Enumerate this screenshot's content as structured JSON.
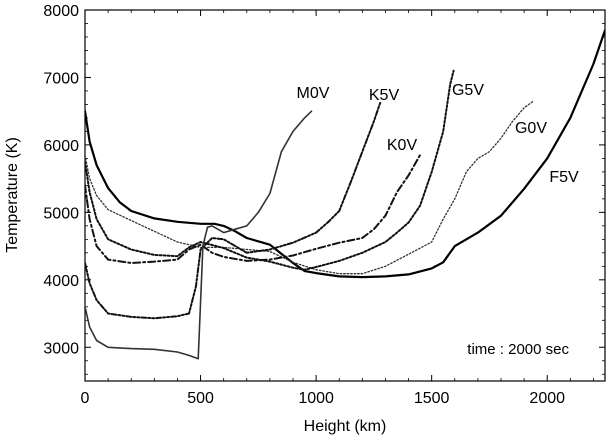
{
  "chart_data": {
    "type": "line",
    "xlabel": "Height (km)",
    "ylabel": "Temperature (K)",
    "xlim": [
      0,
      2250
    ],
    "ylim": [
      2500,
      8000
    ],
    "xticks": [
      0,
      500,
      1000,
      1500,
      2000
    ],
    "yticks": [
      3000,
      4000,
      5000,
      6000,
      7000,
      8000
    ],
    "grid": false,
    "annotation": "time : 2000 sec",
    "series": [
      {
        "name": "F5V",
        "style": "solid-thick",
        "points": [
          [
            0,
            6500
          ],
          [
            20,
            6050
          ],
          [
            50,
            5700
          ],
          [
            100,
            5360
          ],
          [
            150,
            5150
          ],
          [
            200,
            5020
          ],
          [
            300,
            4910
          ],
          [
            400,
            4860
          ],
          [
            500,
            4830
          ],
          [
            560,
            4830
          ],
          [
            600,
            4800
          ],
          [
            650,
            4720
          ],
          [
            700,
            4620
          ],
          [
            800,
            4520
          ],
          [
            900,
            4250
          ],
          [
            950,
            4130
          ],
          [
            1000,
            4100
          ],
          [
            1100,
            4050
          ],
          [
            1200,
            4040
          ],
          [
            1300,
            4050
          ],
          [
            1400,
            4080
          ],
          [
            1500,
            4170
          ],
          [
            1550,
            4260
          ],
          [
            1600,
            4500
          ],
          [
            1700,
            4700
          ],
          [
            1800,
            4950
          ],
          [
            1900,
            5350
          ],
          [
            2000,
            5800
          ],
          [
            2100,
            6400
          ],
          [
            2200,
            7200
          ],
          [
            2250,
            7700
          ]
        ]
      },
      {
        "name": "G0V",
        "style": "dotted",
        "points": [
          [
            0,
            5850
          ],
          [
            20,
            5500
          ],
          [
            50,
            5250
          ],
          [
            100,
            5040
          ],
          [
            200,
            4880
          ],
          [
            300,
            4720
          ],
          [
            400,
            4560
          ],
          [
            500,
            4480
          ],
          [
            600,
            4480
          ],
          [
            700,
            4450
          ],
          [
            800,
            4420
          ],
          [
            900,
            4260
          ],
          [
            1000,
            4150
          ],
          [
            1100,
            4090
          ],
          [
            1200,
            4090
          ],
          [
            1300,
            4200
          ],
          [
            1400,
            4380
          ],
          [
            1500,
            4560
          ],
          [
            1550,
            4900
          ],
          [
            1600,
            5200
          ],
          [
            1650,
            5600
          ],
          [
            1700,
            5800
          ],
          [
            1750,
            5900
          ],
          [
            1800,
            6100
          ],
          [
            1850,
            6350
          ],
          [
            1900,
            6550
          ],
          [
            1940,
            6650
          ]
        ]
      },
      {
        "name": "G5V",
        "style": "dotted-dense",
        "points": [
          [
            0,
            5750
          ],
          [
            20,
            5300
          ],
          [
            50,
            4900
          ],
          [
            100,
            4600
          ],
          [
            200,
            4450
          ],
          [
            300,
            4370
          ],
          [
            400,
            4350
          ],
          [
            450,
            4480
          ],
          [
            500,
            4560
          ],
          [
            600,
            4470
          ],
          [
            700,
            4330
          ],
          [
            800,
            4270
          ],
          [
            900,
            4180
          ],
          [
            950,
            4150
          ],
          [
            1000,
            4190
          ],
          [
            1100,
            4280
          ],
          [
            1200,
            4400
          ],
          [
            1300,
            4560
          ],
          [
            1350,
            4700
          ],
          [
            1400,
            4850
          ],
          [
            1450,
            5100
          ],
          [
            1500,
            5600
          ],
          [
            1550,
            6200
          ],
          [
            1580,
            6900
          ],
          [
            1595,
            7100
          ]
        ]
      },
      {
        "name": "K0V",
        "style": "dash-dot",
        "points": [
          [
            0,
            5400
          ],
          [
            20,
            4900
          ],
          [
            50,
            4500
          ],
          [
            100,
            4300
          ],
          [
            200,
            4250
          ],
          [
            300,
            4270
          ],
          [
            400,
            4300
          ],
          [
            450,
            4450
          ],
          [
            500,
            4520
          ],
          [
            550,
            4400
          ],
          [
            600,
            4340
          ],
          [
            700,
            4280
          ],
          [
            800,
            4300
          ],
          [
            900,
            4360
          ],
          [
            1000,
            4460
          ],
          [
            1100,
            4550
          ],
          [
            1200,
            4620
          ],
          [
            1250,
            4750
          ],
          [
            1300,
            4950
          ],
          [
            1350,
            5300
          ],
          [
            1400,
            5550
          ],
          [
            1450,
            5850
          ]
        ]
      },
      {
        "name": "K5V",
        "style": "dash-dot-dot",
        "points": [
          [
            0,
            4250
          ],
          [
            20,
            3950
          ],
          [
            50,
            3700
          ],
          [
            100,
            3500
          ],
          [
            200,
            3450
          ],
          [
            300,
            3430
          ],
          [
            400,
            3460
          ],
          [
            450,
            3500
          ],
          [
            480,
            3900
          ],
          [
            500,
            4450
          ],
          [
            550,
            4620
          ],
          [
            600,
            4600
          ],
          [
            700,
            4400
          ],
          [
            800,
            4450
          ],
          [
            900,
            4550
          ],
          [
            1000,
            4700
          ],
          [
            1050,
            4850
          ],
          [
            1100,
            5020
          ],
          [
            1150,
            5450
          ],
          [
            1200,
            5900
          ],
          [
            1250,
            6350
          ],
          [
            1280,
            6650
          ]
        ]
      },
      {
        "name": "M0V",
        "style": "solid-thin",
        "points": [
          [
            0,
            3600
          ],
          [
            20,
            3300
          ],
          [
            50,
            3100
          ],
          [
            100,
            3000
          ],
          [
            200,
            2980
          ],
          [
            300,
            2970
          ],
          [
            400,
            2930
          ],
          [
            450,
            2880
          ],
          [
            490,
            2830
          ],
          [
            510,
            4500
          ],
          [
            530,
            4780
          ],
          [
            550,
            4800
          ],
          [
            600,
            4700
          ],
          [
            650,
            4750
          ],
          [
            700,
            4800
          ],
          [
            750,
            5000
          ],
          [
            800,
            5280
          ],
          [
            850,
            5900
          ],
          [
            900,
            6200
          ],
          [
            950,
            6400
          ],
          [
            980,
            6500
          ]
        ]
      }
    ],
    "series_labels": [
      "M0V",
      "K5V",
      "G5V",
      "K0V",
      "G0V",
      "F5V"
    ]
  }
}
